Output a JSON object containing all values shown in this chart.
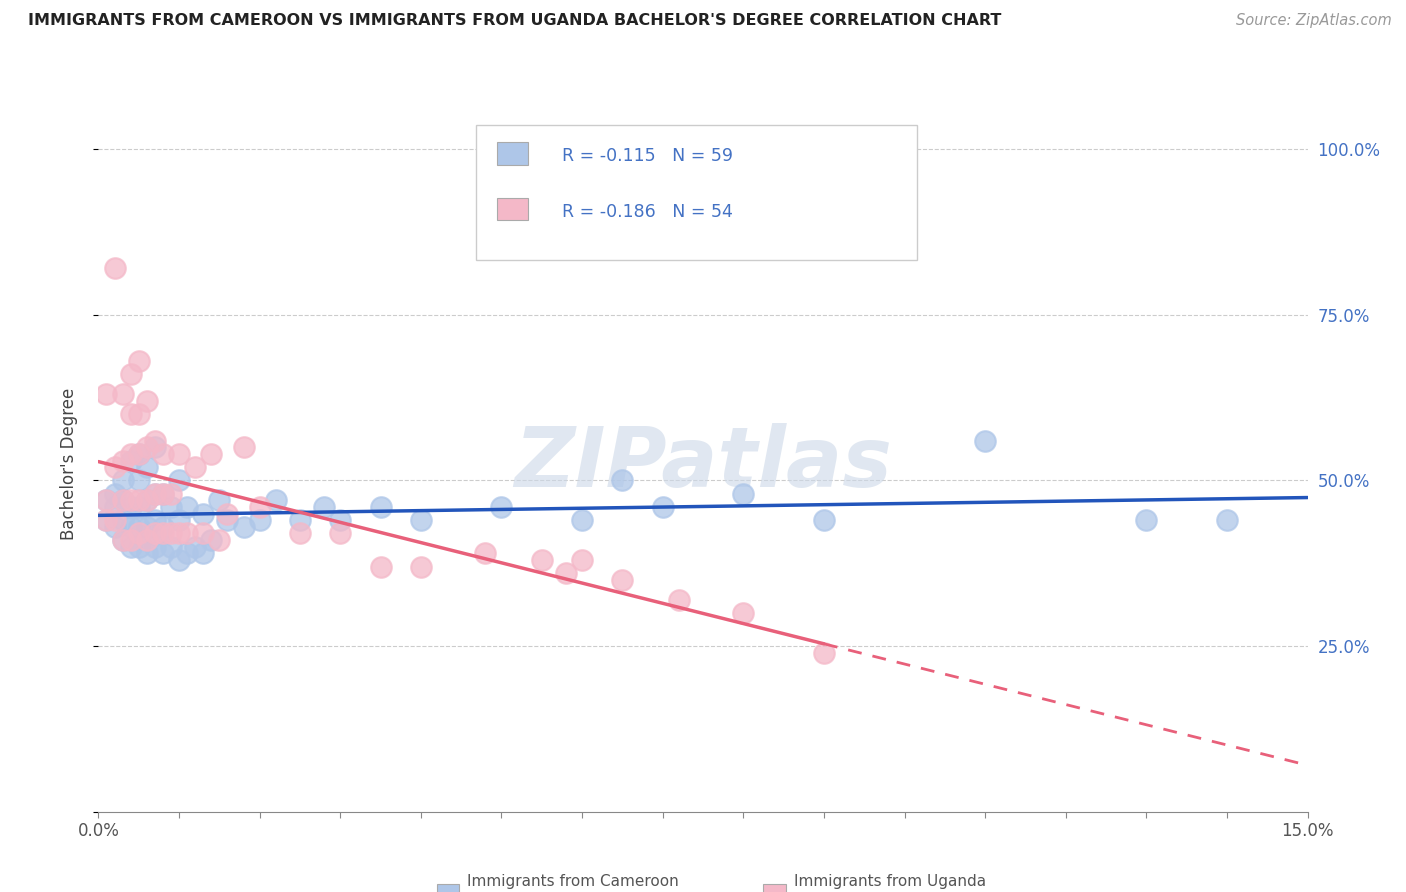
{
  "title": "IMMIGRANTS FROM CAMEROON VS IMMIGRANTS FROM UGANDA BACHELOR'S DEGREE CORRELATION CHART",
  "source_text": "Source: ZipAtlas.com",
  "ylabel": "Bachelor's Degree",
  "xlim": [
    0.0,
    0.15
  ],
  "ylim": [
    0.0,
    1.05
  ],
  "blue_R": -0.115,
  "blue_N": 59,
  "pink_R": -0.186,
  "pink_N": 54,
  "blue_color": "#aec6e8",
  "pink_color": "#f4b8c8",
  "blue_line_color": "#2255bb",
  "pink_line_color": "#e8607a",
  "watermark_text": "ZIPatlas",
  "watermark_color": "#ccd8e8",
  "legend_label_blue": "Immigrants from Cameroon",
  "legend_label_pink": "Immigrants from Uganda",
  "grid_color": "#cccccc",
  "title_color": "#222222",
  "source_color": "#999999",
  "tick_color": "#4472c4",
  "blue_scatter_x": [
    0.001,
    0.001,
    0.002,
    0.002,
    0.002,
    0.003,
    0.003,
    0.003,
    0.003,
    0.004,
    0.004,
    0.004,
    0.004,
    0.005,
    0.005,
    0.005,
    0.005,
    0.005,
    0.006,
    0.006,
    0.006,
    0.006,
    0.007,
    0.007,
    0.007,
    0.007,
    0.008,
    0.008,
    0.008,
    0.009,
    0.009,
    0.01,
    0.01,
    0.01,
    0.011,
    0.011,
    0.012,
    0.013,
    0.013,
    0.014,
    0.015,
    0.016,
    0.018,
    0.02,
    0.022,
    0.025,
    0.028,
    0.03,
    0.035,
    0.04,
    0.05,
    0.06,
    0.065,
    0.07,
    0.08,
    0.09,
    0.11,
    0.13,
    0.14
  ],
  "blue_scatter_y": [
    0.44,
    0.47,
    0.43,
    0.46,
    0.48,
    0.41,
    0.44,
    0.47,
    0.5,
    0.4,
    0.43,
    0.46,
    0.53,
    0.4,
    0.43,
    0.46,
    0.5,
    0.54,
    0.39,
    0.43,
    0.47,
    0.52,
    0.4,
    0.44,
    0.48,
    0.55,
    0.39,
    0.43,
    0.48,
    0.4,
    0.46,
    0.38,
    0.44,
    0.5,
    0.39,
    0.46,
    0.4,
    0.39,
    0.45,
    0.41,
    0.47,
    0.44,
    0.43,
    0.44,
    0.47,
    0.44,
    0.46,
    0.44,
    0.46,
    0.44,
    0.46,
    0.44,
    0.5,
    0.46,
    0.48,
    0.44,
    0.56,
    0.44,
    0.44
  ],
  "pink_scatter_x": [
    0.001,
    0.001,
    0.001,
    0.002,
    0.002,
    0.002,
    0.003,
    0.003,
    0.003,
    0.003,
    0.004,
    0.004,
    0.004,
    0.004,
    0.004,
    0.005,
    0.005,
    0.005,
    0.005,
    0.005,
    0.006,
    0.006,
    0.006,
    0.006,
    0.007,
    0.007,
    0.007,
    0.008,
    0.008,
    0.008,
    0.009,
    0.009,
    0.01,
    0.01,
    0.011,
    0.012,
    0.013,
    0.014,
    0.015,
    0.016,
    0.018,
    0.02,
    0.025,
    0.03,
    0.035,
    0.04,
    0.048,
    0.055,
    0.058,
    0.06,
    0.065,
    0.072,
    0.08,
    0.09
  ],
  "pink_scatter_y": [
    0.44,
    0.47,
    0.63,
    0.44,
    0.52,
    0.82,
    0.41,
    0.47,
    0.53,
    0.63,
    0.41,
    0.47,
    0.54,
    0.6,
    0.66,
    0.42,
    0.47,
    0.54,
    0.6,
    0.68,
    0.41,
    0.47,
    0.55,
    0.62,
    0.42,
    0.48,
    0.56,
    0.42,
    0.48,
    0.54,
    0.42,
    0.48,
    0.42,
    0.54,
    0.42,
    0.52,
    0.42,
    0.54,
    0.41,
    0.45,
    0.55,
    0.46,
    0.42,
    0.42,
    0.37,
    0.37,
    0.39,
    0.38,
    0.36,
    0.38,
    0.35,
    0.32,
    0.3,
    0.24
  ]
}
